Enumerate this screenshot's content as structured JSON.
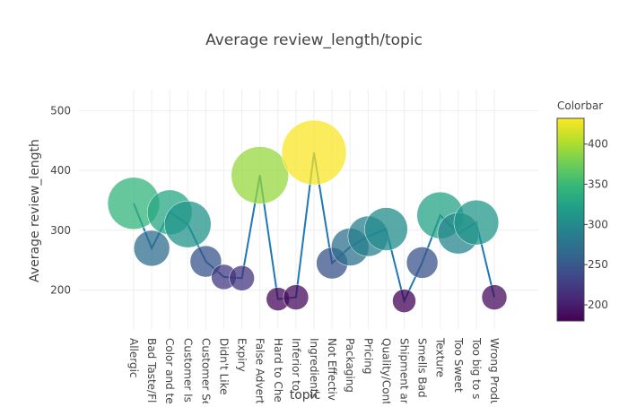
{
  "chart_data": {
    "type": "scatter",
    "title": "Average review_length/topic",
    "xlabel": "topic",
    "ylabel": "Average review_length",
    "ylim": [
      135,
      535
    ],
    "yticks": [
      200,
      300,
      400,
      500
    ],
    "grid": true,
    "categories": [
      "Allergic",
      "Bad Taste/Fl",
      "Color and te",
      "Customer Is",
      "Customer Se",
      "Didn't Like",
      "Expiry",
      "False Advert",
      "Hard to Che",
      "Inferior to",
      "Ingredients",
      "Not Effectiv",
      "Packaging",
      "Pricing",
      "Quality/Cont",
      "Shipment an",
      "Smells Bad",
      "Texture",
      "Too Sweet",
      "Too big to s",
      "Wrong Produ"
    ],
    "values": [
      345,
      270,
      330,
      310,
      248,
      222,
      220,
      392,
      185,
      188,
      430,
      245,
      272,
      290,
      302,
      182,
      246,
      325,
      295,
      313,
      188
    ],
    "marker_sizes": [
      58,
      40,
      50,
      52,
      35,
      28,
      28,
      64,
      26,
      28,
      72,
      35,
      42,
      45,
      48,
      26,
      35,
      52,
      46,
      50,
      28
    ],
    "series_line": true,
    "colorscale": "viridis",
    "colorbar": {
      "title": "Colorbar",
      "range": [
        180,
        432
      ],
      "ticks": [
        200,
        250,
        300,
        350,
        400
      ]
    },
    "colors": {
      "line": "#1f77b4",
      "grid": "#eeeeee",
      "text": "#444444",
      "title": "#444444"
    }
  }
}
